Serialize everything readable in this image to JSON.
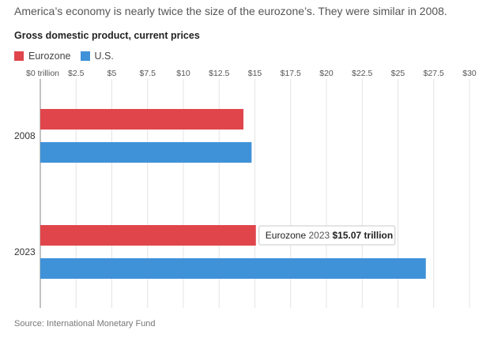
{
  "headline": "America’s economy is nearly twice the size of the eurozone’s. They were similar in 2008.",
  "source": "Source: International Monetary Fund",
  "colors": {
    "eurozone": "#e0454c",
    "us": "#3f92d8"
  },
  "tooltip": {
    "series": "Eurozone",
    "year": "2023",
    "value": "$15.07 trillion"
  },
  "chart_data": {
    "type": "bar",
    "orientation": "horizontal",
    "title": "Gross domestic product, current prices",
    "xlabel": "",
    "ylabel": "",
    "categories": [
      "2008",
      "2023"
    ],
    "series": [
      {
        "name": "Eurozone",
        "values": [
          14.2,
          15.07
        ]
      },
      {
        "name": "U.S.",
        "values": [
          14.77,
          26.95
        ]
      }
    ],
    "xlim": [
      0,
      30
    ],
    "tick_values": [
      0,
      2.5,
      5,
      7.5,
      10,
      12.5,
      15,
      17.5,
      20,
      22.5,
      25,
      27.5,
      30
    ],
    "tick_labels": [
      "$0 trillion",
      "$2.5",
      "$5",
      "$7.5",
      "$10",
      "$12.5",
      "$15",
      "$17.5",
      "$20",
      "$22.5",
      "$25",
      "$27.5",
      "$30"
    ],
    "grid": true,
    "legend_position": "top-left"
  }
}
